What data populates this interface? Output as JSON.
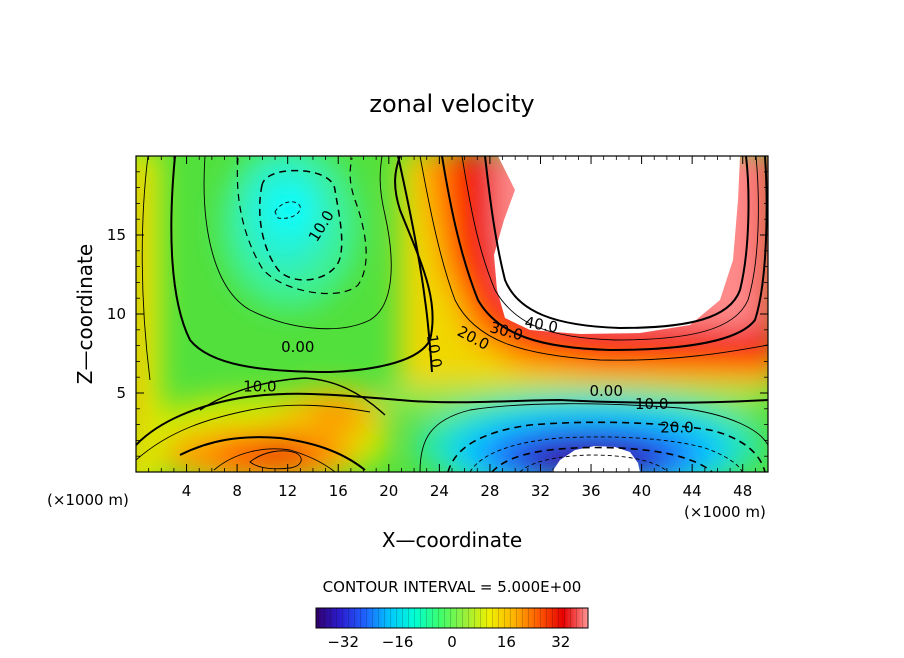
{
  "chart_data": {
    "type": "heatmap",
    "title": "zonal velocity",
    "xlabel": "X—coordinate",
    "ylabel": "Z—coordinate",
    "x_unit": "(×1000 m)",
    "y_unit": "(×1000 m)",
    "xlim": [
      0,
      50
    ],
    "ylim": [
      0,
      20
    ],
    "x_ticks": [
      4,
      8,
      12,
      16,
      20,
      24,
      28,
      32,
      36,
      40,
      44,
      48
    ],
    "y_ticks": [
      5,
      10,
      15
    ],
    "contour_interval_text": "CONTOUR INTERVAL = 5.000E+00",
    "contour_interval": 5.0,
    "colorbar": {
      "range": [
        -40,
        40
      ],
      "ticks": [
        -32,
        -16,
        0,
        16,
        32
      ],
      "colors": [
        "#32006e",
        "#2a1ed2",
        "#1e64ff",
        "#00c8ff",
        "#00ffd2",
        "#3cff6e",
        "#96f03c",
        "#f0f000",
        "#ffb400",
        "#ff5a00",
        "#e60000",
        "#ff9696"
      ]
    },
    "contour_labels": [
      {
        "text": "10.0",
        "x": 15,
        "y": 15.4,
        "rot": -58
      },
      {
        "text": "0.00",
        "x": 12.8,
        "y": 7.6,
        "rot": 0
      },
      {
        "text": "10.0",
        "x": 9.8,
        "y": 5.1,
        "rot": 0
      },
      {
        "text": "10.0",
        "x": 23.2,
        "y": 7.6,
        "rot": 82
      },
      {
        "text": "20.0",
        "x": 26.5,
        "y": 8.2,
        "rot": 28
      },
      {
        "text": "30.0",
        "x": 29.2,
        "y": 8.6,
        "rot": 15
      },
      {
        "text": "40.0",
        "x": 32.0,
        "y": 9.0,
        "rot": 10
      },
      {
        "text": "0.00",
        "x": 37.2,
        "y": 4.8,
        "rot": 0
      },
      {
        "text": "10.0",
        "x": 40.8,
        "y": 4.0,
        "rot": 0
      },
      {
        "text": "20.0",
        "x": 42.8,
        "y": 2.5,
        "rot": 0
      }
    ]
  }
}
